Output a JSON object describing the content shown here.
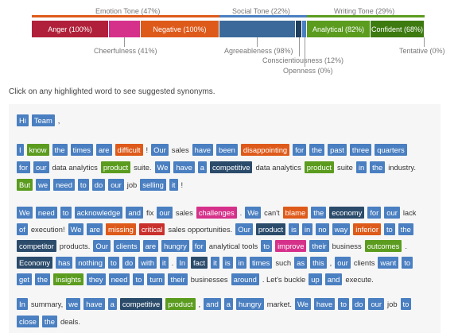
{
  "chart": {
    "categories": [
      {
        "label": "Emotion Tone (47%)",
        "color": "#de5a1a"
      },
      {
        "label": "Social Tone (22%)",
        "color": "#4a7fc1"
      },
      {
        "label": "Writing Tone (29%)",
        "color": "#5b9c1f"
      }
    ],
    "bars": [
      {
        "label": "Anger (100%)",
        "color": "#b0203a"
      },
      {
        "label": "",
        "color": "#d6318a"
      },
      {
        "label": "Negative (100%)",
        "color": "#de5a1a"
      },
      {
        "label": "",
        "color": "#3b6a9a"
      },
      {
        "label": "",
        "color": "#1f3d5c"
      },
      {
        "label": "",
        "color": "#4a7fc1"
      },
      {
        "label": "Analytical (82%)",
        "color": "#5b9c1f"
      },
      {
        "label": "Confident (68%)",
        "color": "#3d7a10"
      }
    ],
    "below_labels": {
      "cheerfulness": "Cheerfulness (41%)",
      "agreeableness": "Agreeableness (98%)",
      "conscientiousness": "Conscientiousness (12%)",
      "openness": "Openness (0%)",
      "tentative": "Tentative (0%)"
    }
  },
  "instructions": "Click on any highlighted word to see suggested synonyms.",
  "paragraphs": [
    [
      [
        [
          "Hi",
          "blue"
        ],
        [
          "Team",
          "blue"
        ],
        [
          ",",
          ""
        ]
      ]
    ],
    [
      [
        [
          "I",
          "blue"
        ],
        [
          "know",
          "green"
        ],
        [
          "the",
          "blue"
        ],
        [
          "times",
          "blue"
        ],
        [
          "are",
          "blue"
        ],
        [
          "difficult",
          "orange"
        ],
        [
          "!",
          ""
        ],
        [
          "Our",
          "blue"
        ],
        [
          "sales",
          ""
        ],
        [
          "have",
          "blue"
        ],
        [
          "been",
          "blue"
        ],
        [
          "disappointing",
          "orange"
        ],
        [
          "for",
          "blue"
        ],
        [
          "the",
          "blue"
        ],
        [
          "past",
          "blue"
        ],
        [
          "three",
          "blue"
        ],
        [
          "quarters",
          "blue"
        ]
      ],
      [
        [
          "for",
          "blue"
        ],
        [
          "our",
          "blue"
        ],
        [
          "data analytics",
          ""
        ],
        [
          "product",
          "green"
        ],
        [
          "suite.",
          ""
        ],
        [
          "We",
          "blue"
        ],
        [
          "have",
          "blue"
        ],
        [
          "a",
          "blue"
        ],
        [
          "competitive",
          "dark"
        ],
        [
          "data analytics",
          ""
        ],
        [
          "product",
          "green"
        ],
        [
          "suite",
          ""
        ],
        [
          "in",
          "blue"
        ],
        [
          "the",
          "blue"
        ],
        [
          "industry.",
          ""
        ]
      ],
      [
        [
          "But",
          "green"
        ],
        [
          "we",
          "blue"
        ],
        [
          "need",
          "blue"
        ],
        [
          "to",
          "blue"
        ],
        [
          "do",
          "blue"
        ],
        [
          "our",
          "blue"
        ],
        [
          "job",
          ""
        ],
        [
          "selling",
          "blue"
        ],
        [
          "it",
          "blue"
        ],
        [
          "!",
          ""
        ]
      ]
    ],
    [
      [
        [
          "We",
          "blue"
        ],
        [
          "need",
          "blue"
        ],
        [
          "to",
          "blue"
        ],
        [
          "acknowledge",
          "blue"
        ],
        [
          "and",
          "blue"
        ],
        [
          "fix",
          ""
        ],
        [
          "our",
          "blue"
        ],
        [
          "sales",
          ""
        ],
        [
          "challenges",
          "pink"
        ],
        [
          ".",
          ""
        ],
        [
          "We",
          "blue"
        ],
        [
          "can't",
          ""
        ],
        [
          "blame",
          "orange"
        ],
        [
          "the",
          "blue"
        ],
        [
          "economy",
          "dark"
        ],
        [
          "for",
          "blue"
        ],
        [
          "our",
          "blue"
        ],
        [
          "lack",
          ""
        ]
      ],
      [
        [
          "of",
          "blue"
        ],
        [
          "execution!",
          ""
        ],
        [
          "We",
          "blue"
        ],
        [
          "are",
          "blue"
        ],
        [
          "missing",
          "orange"
        ],
        [
          "critical",
          "red"
        ],
        [
          "sales opportunities.",
          ""
        ],
        [
          "Our",
          "blue"
        ],
        [
          "product",
          "dark"
        ],
        [
          "is",
          "blue"
        ],
        [
          "in",
          "blue"
        ],
        [
          "no",
          "blue"
        ],
        [
          "way",
          "blue"
        ],
        [
          "inferior",
          "orange"
        ],
        [
          "to",
          "blue"
        ],
        [
          "the",
          "blue"
        ]
      ],
      [
        [
          "competitor",
          "dark"
        ],
        [
          "products.",
          ""
        ],
        [
          "Our",
          "blue"
        ],
        [
          "clients",
          "blue"
        ],
        [
          "are",
          "blue"
        ],
        [
          "hungry",
          "blue"
        ],
        [
          "for",
          "blue"
        ],
        [
          "analytical tools",
          ""
        ],
        [
          "to",
          "blue"
        ],
        [
          "improve",
          "pink"
        ],
        [
          "their",
          "blue"
        ],
        [
          "business",
          ""
        ],
        [
          "outcomes",
          "green"
        ],
        [
          ".",
          ""
        ]
      ],
      [
        [
          "Economy",
          "dark"
        ],
        [
          "has",
          "blue"
        ],
        [
          "nothing",
          "blue"
        ],
        [
          "to",
          "blue"
        ],
        [
          "do",
          "blue"
        ],
        [
          "with",
          "blue"
        ],
        [
          "it",
          "blue"
        ],
        [
          ".",
          ""
        ],
        [
          "In",
          "blue"
        ],
        [
          "fact",
          "dark"
        ],
        [
          "it",
          "blue"
        ],
        [
          "is",
          "blue"
        ],
        [
          "in",
          "blue"
        ],
        [
          "times",
          "blue"
        ],
        [
          "such",
          ""
        ],
        [
          "as",
          "blue"
        ],
        [
          "this",
          "blue"
        ],
        [
          ",",
          ""
        ],
        [
          "our",
          "blue"
        ],
        [
          "clients",
          ""
        ],
        [
          "want",
          "blue"
        ],
        [
          "to",
          "blue"
        ]
      ],
      [
        [
          "get",
          "blue"
        ],
        [
          "the",
          "blue"
        ],
        [
          "insights",
          "green"
        ],
        [
          "they",
          "blue"
        ],
        [
          "need",
          "blue"
        ],
        [
          "to",
          "blue"
        ],
        [
          "turn",
          "blue"
        ],
        [
          "their",
          "blue"
        ],
        [
          "businesses",
          ""
        ],
        [
          "around",
          "blue"
        ],
        [
          ". Let's buckle",
          ""
        ],
        [
          "up",
          "blue"
        ],
        [
          "and",
          "blue"
        ],
        [
          "execute.",
          ""
        ]
      ]
    ],
    [
      [
        [
          "In",
          "blue"
        ],
        [
          "summary,",
          ""
        ],
        [
          "we",
          "blue"
        ],
        [
          "have",
          "blue"
        ],
        [
          "a",
          "blue"
        ],
        [
          "competitive",
          "dark"
        ],
        [
          "product",
          "green"
        ],
        [
          ",",
          ""
        ],
        [
          "and",
          "blue"
        ],
        [
          "a",
          "blue"
        ],
        [
          "hungry",
          "blue"
        ],
        [
          "market.",
          ""
        ],
        [
          "We",
          "blue"
        ],
        [
          "have",
          "blue"
        ],
        [
          "to",
          "blue"
        ],
        [
          "do",
          "blue"
        ],
        [
          "our",
          "blue"
        ],
        [
          "job",
          ""
        ],
        [
          "to",
          "blue"
        ]
      ],
      [
        [
          "close",
          "blue"
        ],
        [
          "the",
          "blue"
        ],
        [
          "deals.",
          ""
        ]
      ]
    ]
  ]
}
